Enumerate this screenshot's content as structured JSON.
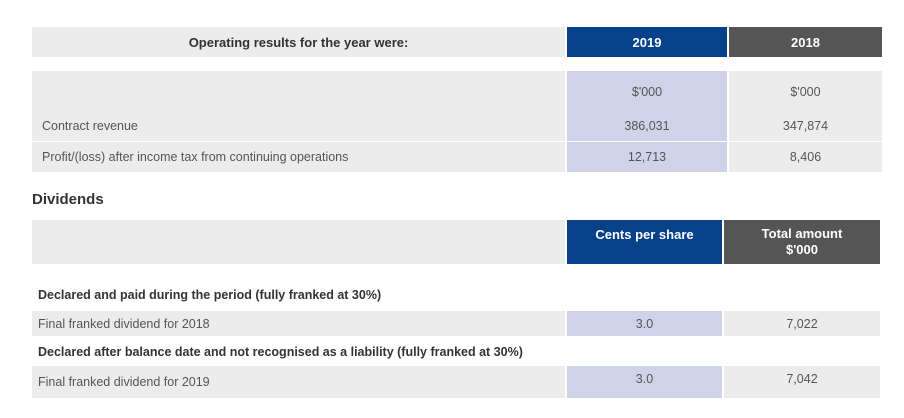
{
  "operating": {
    "heading": "Operating results for the year were:",
    "col_2019": "2019",
    "col_2018": "2018",
    "unit_2019": "$'000",
    "unit_2018": "$'000",
    "rows": [
      {
        "label": "Contract revenue",
        "v2019": "386,031",
        "v2018": "347,874"
      },
      {
        "label": "Profit/(loss) after income tax from continuing operations",
        "v2019": "12,713",
        "v2018": "8,406"
      }
    ]
  },
  "dividends": {
    "title": "Dividends",
    "col_cents": "Cents per share",
    "col_total_line1": "Total amount",
    "col_total_line2": "$'000",
    "section1": "Declared and paid during the period (fully franked at 30%)",
    "row1": {
      "label": "Final franked dividend for 2018",
      "cents": "3.0",
      "total": "7,022"
    },
    "section2": "Declared after balance date and not recognised as a liability (fully franked at 30%)",
    "row2": {
      "label": "Final franked dividend for 2019",
      "cents": "3.0",
      "total": "7,042"
    }
  },
  "colors": {
    "navy": "#06418a",
    "dark_grey": "#555555",
    "light_grey": "#ececec",
    "lavender": "#cfd3ea"
  }
}
